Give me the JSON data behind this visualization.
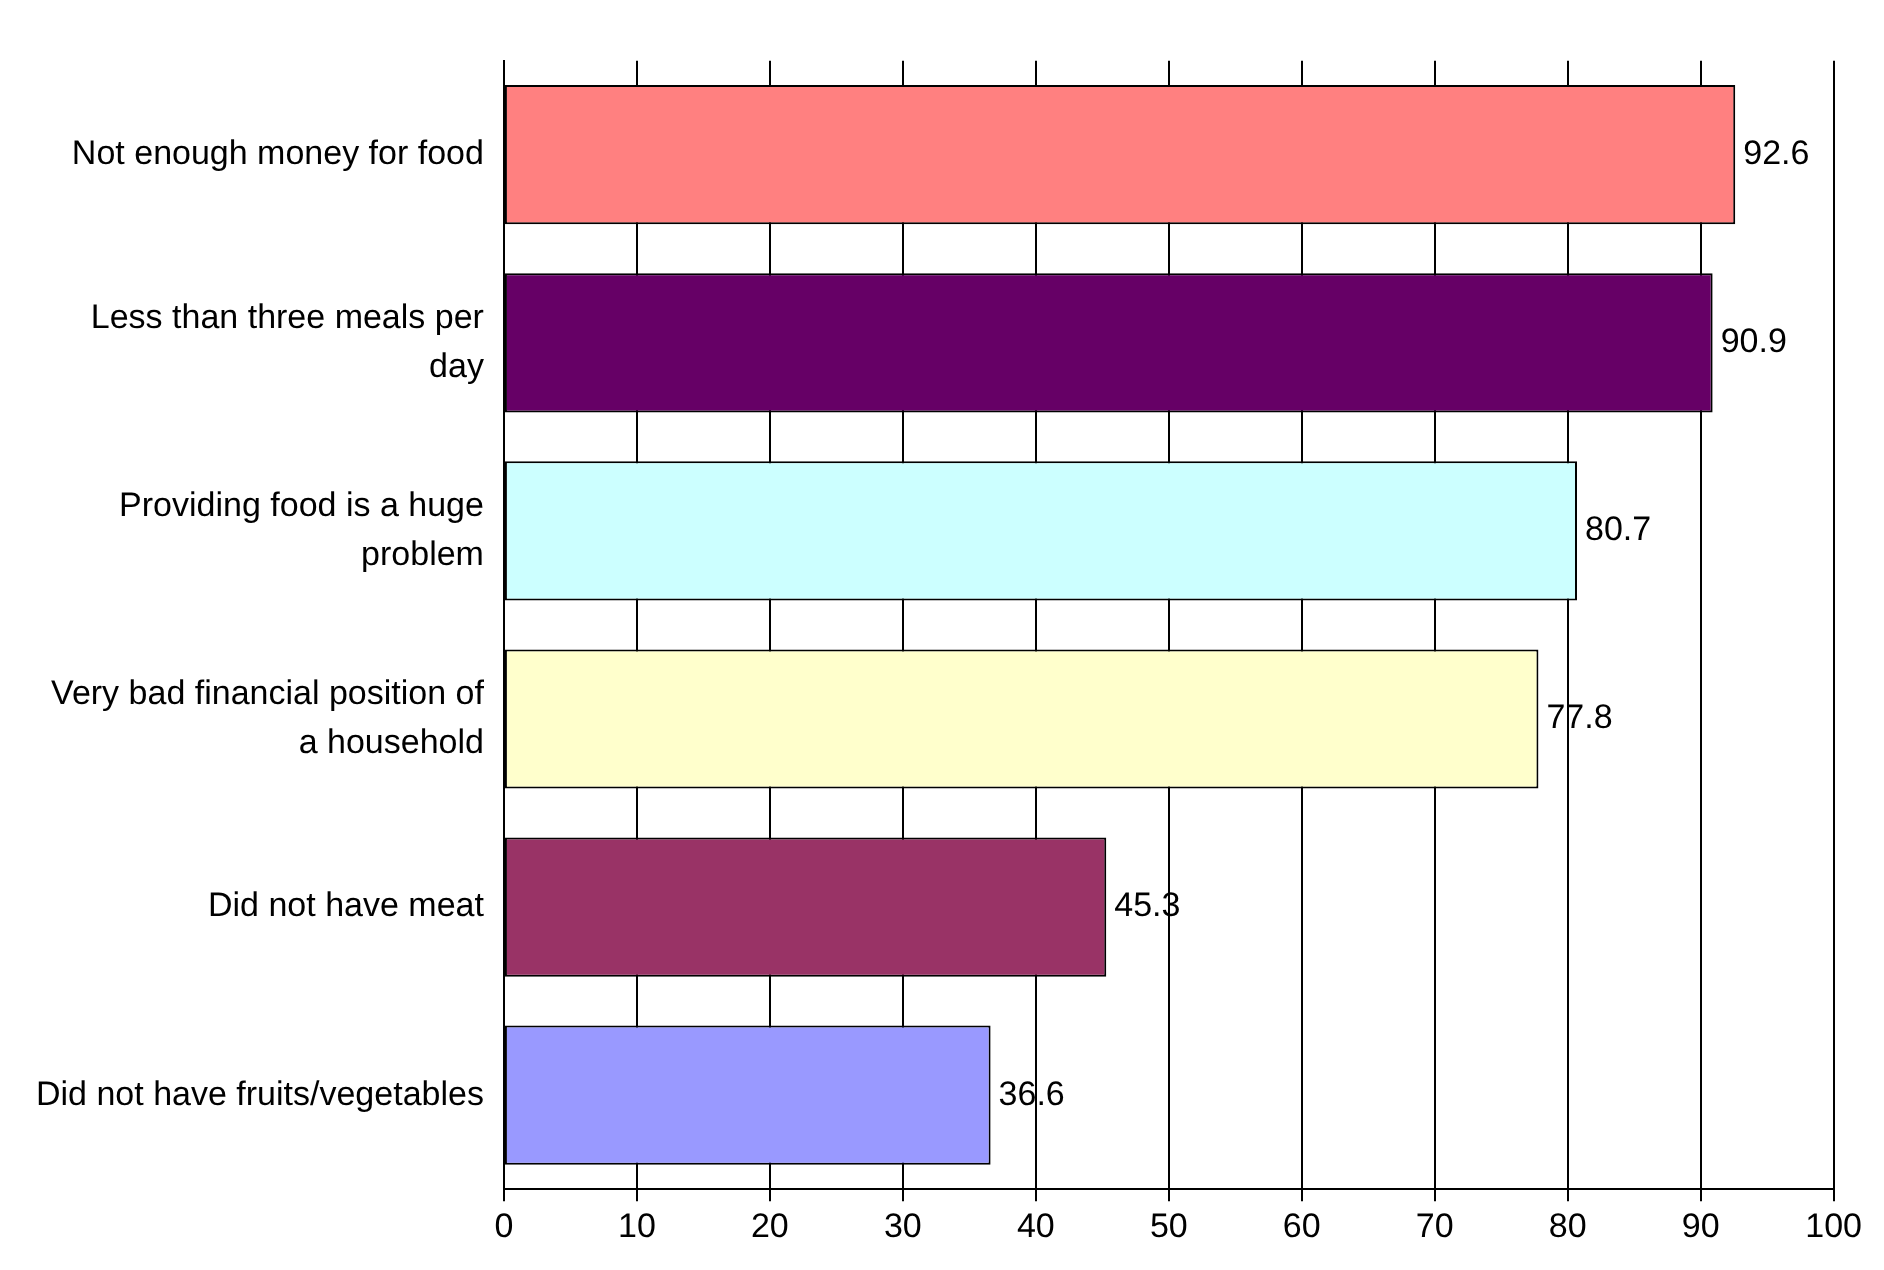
{
  "chart_data": {
    "type": "bar",
    "orientation": "horizontal",
    "categories": [
      "Not enough money for food",
      "Less than three meals per day",
      "Providing food is a huge problem",
      "Very bad financial position of a household",
      "Did not have meat",
      "Did not have fruits/vegetables"
    ],
    "values": [
      92.6,
      90.9,
      80.7,
      77.8,
      45.3,
      36.6
    ],
    "colors": [
      "#ff8080",
      "#660066",
      "#ccffff",
      "#ffffcc",
      "#993366",
      "#9999ff"
    ],
    "xlim": [
      0,
      100
    ],
    "xticks": [
      0,
      10,
      20,
      30,
      40,
      50,
      60,
      70,
      80,
      90,
      100
    ],
    "grid": "x",
    "data_labels": true,
    "legend": false
  }
}
